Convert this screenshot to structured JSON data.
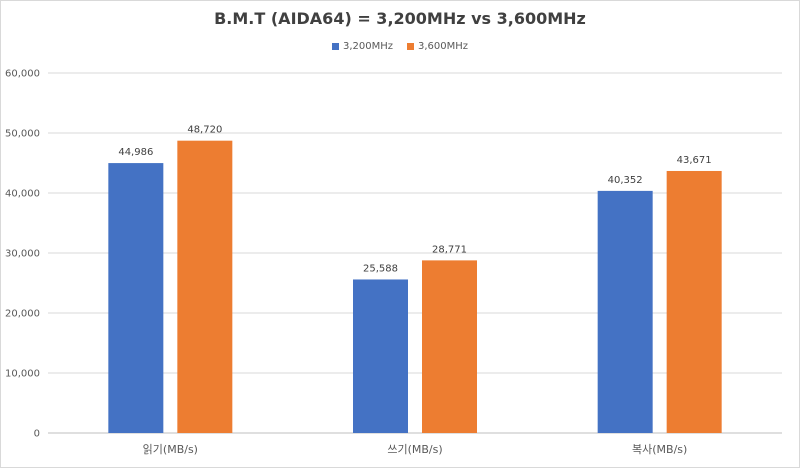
{
  "chart_data": {
    "type": "bar",
    "title": "B.M.T (AIDA64) = 3,200MHz vs 3,600MHz",
    "categories": [
      "읽기(MB/s)",
      "쓰기(MB/s)",
      "복사(MB/s)"
    ],
    "series": [
      {
        "name": "3,200MHz",
        "color": "#4472c4",
        "values": [
          44986,
          25588,
          40352
        ],
        "labels": [
          "44,986",
          "25,588",
          "40,352"
        ]
      },
      {
        "name": "3,600MHz",
        "color": "#ed7d31",
        "values": [
          48720,
          28771,
          43671
        ],
        "labels": [
          "48,720",
          "28,771",
          "43,671"
        ]
      }
    ],
    "ylim": [
      0,
      60000
    ],
    "yticks": [
      "0",
      "10,000",
      "20,000",
      "30,000",
      "40,000",
      "50,000",
      "60,000"
    ],
    "grid": true,
    "legend_position": "top"
  }
}
